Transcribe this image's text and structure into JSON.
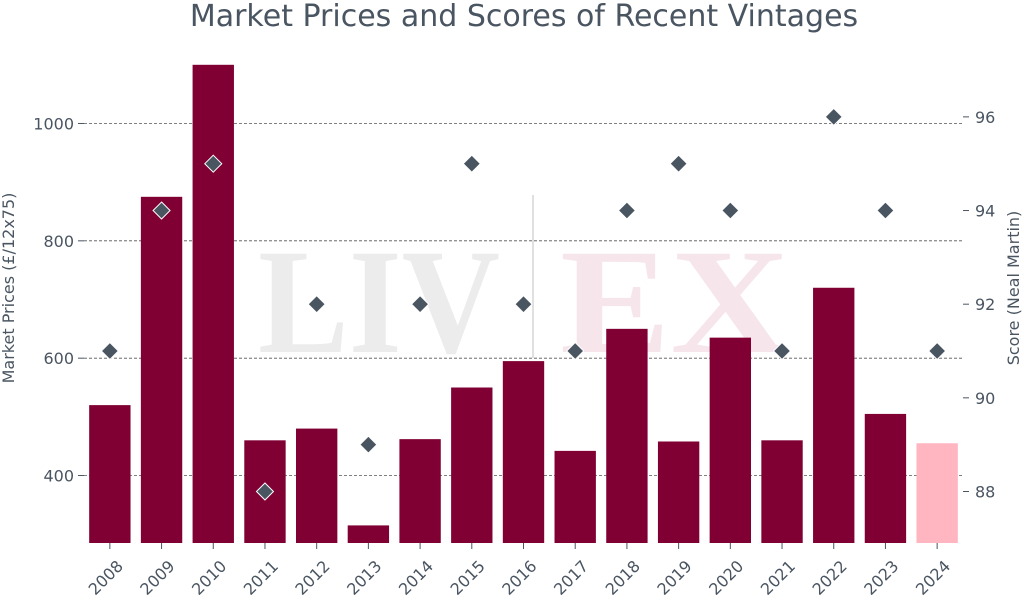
{
  "chart_data": {
    "type": "bar",
    "title": "Market Prices and Scores of Recent Vintages",
    "ylabel": "Market Prices (£/12x75)",
    "y2label": "Score (Neal Martin)",
    "categories": [
      "2008",
      "2009",
      "2010",
      "2011",
      "2012",
      "2013",
      "2014",
      "2015",
      "2016",
      "2017",
      "2018",
      "2019",
      "2020",
      "2021",
      "2022",
      "2023",
      "2024"
    ],
    "series": [
      {
        "values": [
          520,
          875,
          1100,
          460,
          480,
          315,
          462,
          550,
          595,
          442,
          650,
          458,
          635,
          460,
          720,
          505,
          455
        ],
        "color": "#800033",
        "highlight_last_color": "#ffb6c1",
        "axis": "left"
      },
      {
        "values": [
          91,
          94,
          95,
          88,
          92,
          89,
          92,
          95,
          92,
          91,
          94,
          95,
          94,
          91,
          96,
          94,
          91
        ],
        "color": "#4a5562",
        "marker": "diamond",
        "axis": "right"
      }
    ],
    "ylim": [
      285,
      1115
    ],
    "y2lim": [
      86.9,
      97.3
    ],
    "yticks": [
      400,
      600,
      800,
      1000
    ],
    "y2ticks": [
      88,
      90,
      92,
      94,
      96
    ],
    "grid": true
  },
  "watermark": {
    "left": "LIV",
    "right": "EX"
  },
  "colors": {
    "text": "#4a5562",
    "bar": "#800033",
    "bar_last": "#ffb6c1"
  }
}
